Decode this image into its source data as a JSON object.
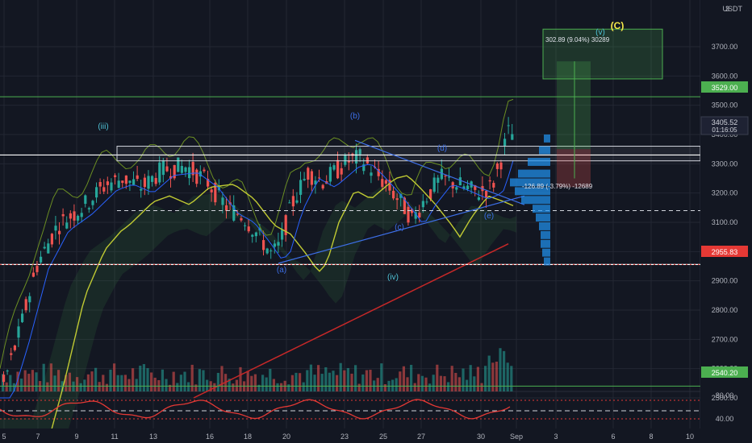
{
  "currency": "USDT",
  "price_axis": {
    "corner_label": "3",
    "ticks": [
      "3700.00",
      "3600.00",
      "3500.00",
      "3400.00",
      "3300.00",
      "3200.00",
      "3100.00",
      "3000.00",
      "2900.00",
      "2800.00",
      "2700.00",
      "2600.00",
      "2500.00"
    ],
    "tags": {
      "resistance": "3529.00",
      "current_price": "3405.52",
      "countdown": "01:16:05",
      "support": "2955.83",
      "base": "2540.20"
    }
  },
  "oscillator_axis": {
    "ticks": [
      "80.00",
      "40.00"
    ]
  },
  "time_axis": {
    "ticks": [
      "5",
      "7",
      "9",
      "11",
      "13",
      "16",
      "18",
      "20",
      "23",
      "25",
      "27",
      "30",
      "Sep",
      "3",
      "6",
      "8",
      "10"
    ]
  },
  "annotations": {
    "wave_iii": "(iii)",
    "wave_iv": "(iv)",
    "wave_v": "(v)",
    "wave_C": "(C)",
    "wave_a": "(a)",
    "wave_b": "(b)",
    "wave_c": "(c)",
    "wave_d": "(d)",
    "wave_e": "(e)",
    "target_measure": "302.89 (9.04%) 30289",
    "stop_measure": "-126.89 (-3.79%) -12689"
  },
  "colors": {
    "background": "#131722",
    "grid": "#232733",
    "bull": "#26a69a",
    "bear": "#ef5350",
    "level_green": "#4caf50",
    "wave_blue": "#3d6fe8",
    "ema_red": "#c62828",
    "wave_yellow": "#f5e94a",
    "wave_cyan": "#4fc3d7",
    "volume_profile": "#2196f3"
  },
  "chart_data": {
    "type": "candlestick",
    "symbol_quote": "USDT",
    "y_range": [
      2480,
      3760
    ],
    "x_axis_labels": [
      "5",
      "7",
      "9",
      "11",
      "13",
      "16",
      "18",
      "20",
      "23",
      "25",
      "27",
      "30",
      "Sep",
      "3",
      "6",
      "8",
      "10"
    ],
    "key_levels": [
      {
        "label": "3529.00",
        "value": 3529
      },
      {
        "label": "3405.52",
        "value": 3405.52
      },
      {
        "label": "2955.83",
        "value": 2955.83
      },
      {
        "label": "2540.20",
        "value": 2540.2
      }
    ],
    "trade_projection": {
      "target_text": "302.89 (9.04%) 30289",
      "stop_text": "-126.89 (-3.79%) -12689"
    },
    "oscillator_levels": [
      80,
      40
    ]
  }
}
